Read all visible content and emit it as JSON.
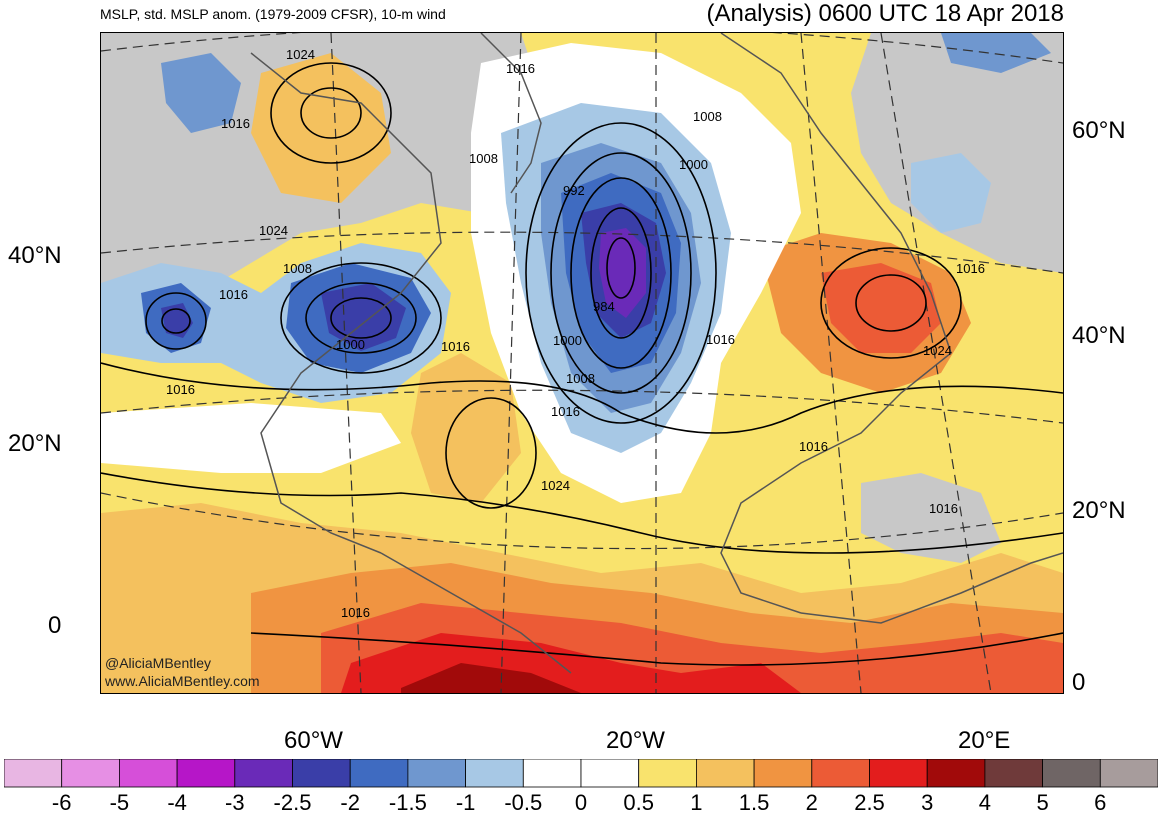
{
  "title": {
    "left": "MSLP, std. MSLP anom. (1979-2009 CFSR), 10-m wind",
    "right": "(Analysis) 0600 UTC 18 Apr 2018"
  },
  "credit": {
    "handle": "@AliciaMBentley",
    "url": "www.AliciaMBentley.com"
  },
  "axes": {
    "left_lat": [
      "40°N",
      "20°N",
      "0"
    ],
    "right_lat": [
      "60°N",
      "40°N",
      "20°N",
      "0"
    ],
    "bottom_lon": [
      "60°W",
      "20°W",
      "20°E"
    ]
  },
  "isobar_labels": [
    "1024",
    "1016",
    "1016",
    "1008",
    "1008",
    "1000",
    "992",
    "984",
    "1000",
    "1008",
    "1016",
    "1016",
    "1024",
    "1016",
    "1000",
    "1008",
    "1016",
    "1016",
    "1024",
    "1024",
    "1016",
    "1016",
    "1016",
    "1016"
  ],
  "colorbar": {
    "labels": [
      "-6",
      "-5",
      "-4",
      "-3",
      "-2.5",
      "-2",
      "-1.5",
      "-1",
      "-0.5",
      "0",
      "0.5",
      "1",
      "1.5",
      "2",
      "2.5",
      "3",
      "4",
      "5",
      "6"
    ],
    "colors": [
      "#e8b6e3",
      "#e68fe4",
      "#d64fd9",
      "#b616c8",
      "#6a2ab8",
      "#3a3ea8",
      "#3f6bc1",
      "#6f97cf",
      "#a7c8e5",
      "#ffffff",
      "#ffffff",
      "#f9e36d",
      "#f4c15e",
      "#f09441",
      "#ec5b36",
      "#e31d1d",
      "#a10a0a",
      "#6f3a3a",
      "#6f6565",
      "#a79c9c"
    ]
  }
}
